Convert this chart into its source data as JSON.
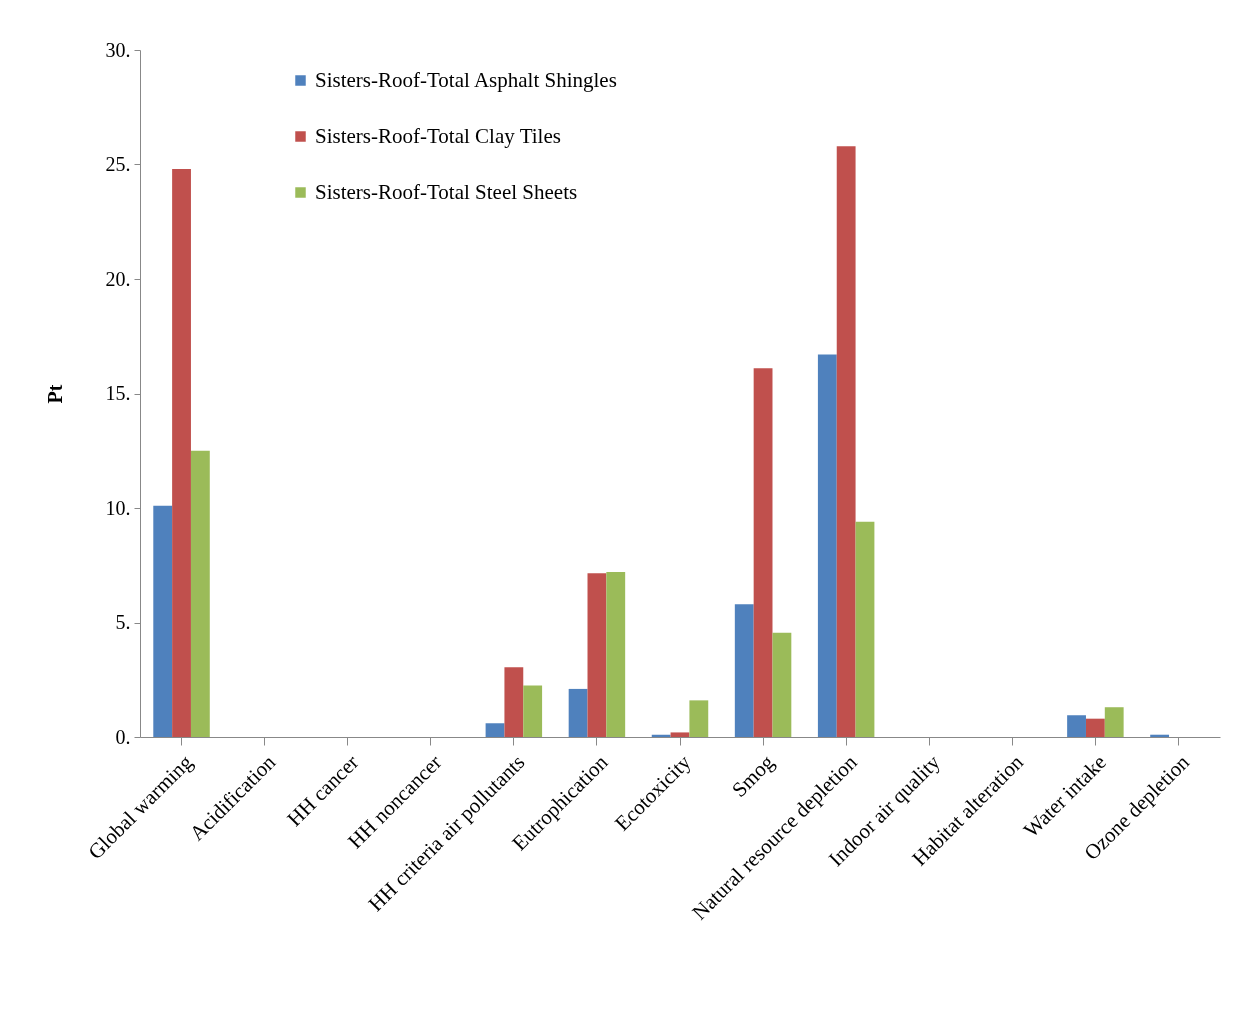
{
  "chart_data": {
    "type": "bar",
    "ylabel": "Pt",
    "categories": [
      "Global warming",
      "Acidification",
      "HH cancer",
      "HH noncancer",
      "HH criteria air pollutants",
      "Eutrophication",
      "Ecotoxicity",
      "Smog",
      "Natural resource depletion",
      "Indoor air quality",
      "Habitat alteration",
      "Water intake",
      "Ozone depletion"
    ],
    "series": [
      {
        "name": "Sisters-Roof-Total Asphalt Shingles",
        "color": "#4f81bd",
        "values": [
          10.1,
          0,
          0,
          0,
          0.6,
          2.1,
          0.1,
          5.8,
          16.7,
          0,
          0,
          0.95,
          0.1
        ]
      },
      {
        "name": "Sisters-Roof-Total Clay Tiles",
        "color": "#c0504d",
        "values": [
          24.8,
          0,
          0,
          0,
          3.05,
          7.15,
          0.2,
          16.1,
          25.8,
          0,
          0,
          0.8,
          0
        ]
      },
      {
        "name": "Sisters-Roof-Total Steel Sheets",
        "color": "#9bbb59",
        "values": [
          12.5,
          0,
          0,
          0,
          2.25,
          7.2,
          1.6,
          4.55,
          9.4,
          0,
          0,
          1.3,
          0
        ]
      }
    ],
    "ylim": [
      0,
      30
    ],
    "yticks": [
      {
        "value": 0,
        "label": "0."
      },
      {
        "value": 5,
        "label": "5."
      },
      {
        "value": 10,
        "label": "10."
      },
      {
        "value": 15,
        "label": "15."
      },
      {
        "value": 20,
        "label": "20."
      },
      {
        "value": 25,
        "label": "25."
      },
      {
        "value": 30,
        "label": "30."
      }
    ],
    "legend": "top left",
    "grid": false
  }
}
